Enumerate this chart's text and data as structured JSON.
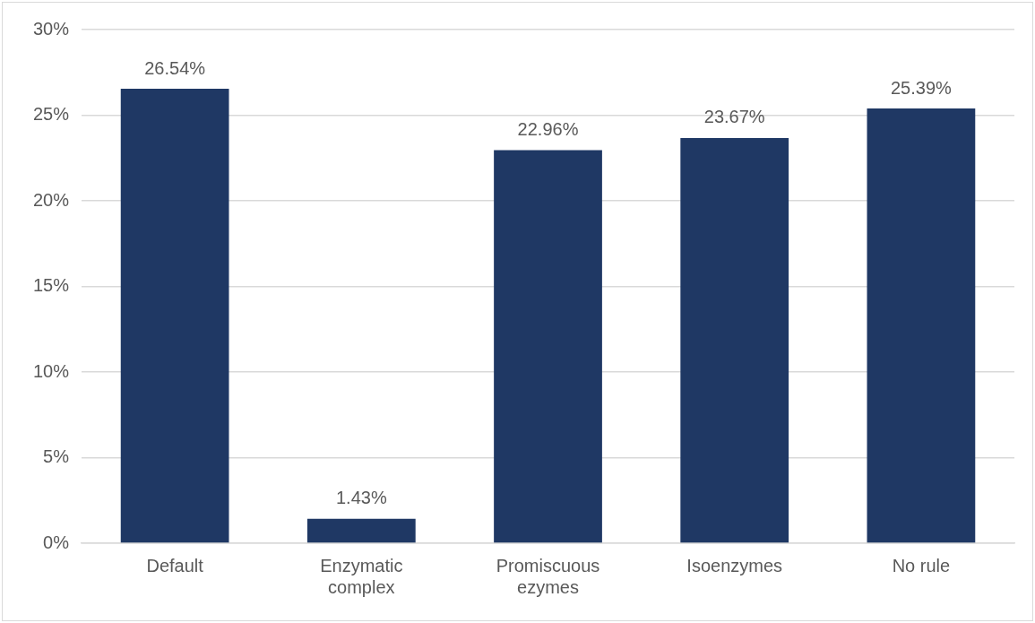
{
  "chart_data": {
    "type": "bar",
    "categories": [
      "Default",
      "Enzymatic complex",
      "Promiscuous ezymes",
      "Isoenzymes",
      "No rule"
    ],
    "values": [
      26.54,
      1.43,
      22.96,
      23.67,
      25.39
    ],
    "value_labels": [
      "26.54%",
      "1.43%",
      "22.96%",
      "23.67%",
      "25.39%"
    ],
    "color": "#1f3864",
    "ylim": [
      0,
      30
    ],
    "yticks": [
      {
        "value": 0,
        "label": "0%"
      },
      {
        "value": 5,
        "label": "5%"
      },
      {
        "value": 10,
        "label": "10%"
      },
      {
        "value": 15,
        "label": "15%"
      },
      {
        "value": 20,
        "label": "20%"
      },
      {
        "value": 25,
        "label": "25%"
      },
      {
        "value": 30,
        "label": "30%"
      }
    ],
    "grid": "y",
    "legend": false
  }
}
